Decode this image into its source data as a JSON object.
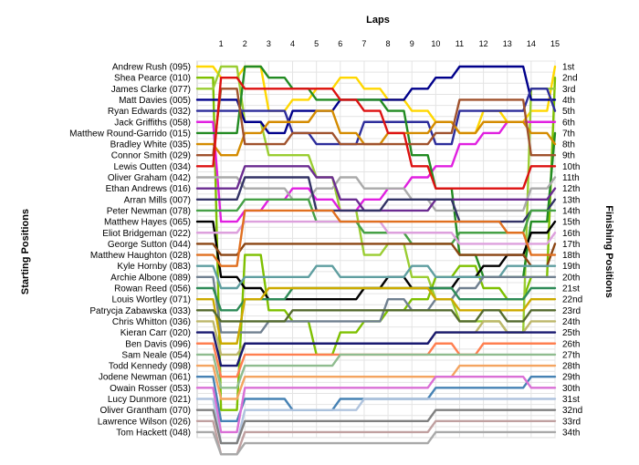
{
  "chart_data": {
    "type": "line",
    "title": "Laps",
    "ylabel_left": "Starting Positions",
    "ylabel_right": "Finishing Positions",
    "laps": [
      "1",
      "2",
      "3",
      "4",
      "5",
      "6",
      "7",
      "8",
      "9",
      "10",
      "11",
      "12",
      "13",
      "14",
      "15"
    ],
    "drivers": [
      "Andrew Rush (095)",
      "Shea Pearce (010)",
      "James Clarke (077)",
      "Matt Davies (005)",
      "Ryan Edwards (032)",
      "Jack Griffiths (058)",
      "Matthew Round-Garrido (015)",
      "Bradley White (035)",
      "Connor Smith (029)",
      "Lewis Outten (034)",
      "Oliver Graham (042)",
      "Ethan Andrews (016)",
      "Arran Mills (007)",
      "Peter Newman (078)",
      "Matthew Hayes (065)",
      "Eliot Bridgeman (022)",
      "George Sutton (044)",
      "Matthew Haughton (028)",
      "Kyle Hornby (083)",
      "Archie Albone (089)",
      "Rowan Reed (056)",
      "Louis Wortley (071)",
      "Patrycja Zabawska (033)",
      "Chris Whitton (036)",
      "Kieran Carr (020)",
      "Ben Davis (096)",
      "Sam Neale (054)",
      "Todd Kennedy (098)",
      "Jodene Newman (061)",
      "Owain Rosser (053)",
      "Lucy Dunmore (021)",
      "Oliver Grantham (070)",
      "Lawrence Wilson (026)",
      "Tom Hackett (048)"
    ],
    "finishing_positions": [
      "1st",
      "2nd",
      "3rd",
      "4th",
      "5th",
      "6th",
      "7th",
      "8th",
      "9th",
      "10th",
      "11th",
      "12th",
      "13th",
      "14th",
      "15th",
      "16th",
      "17th",
      "18th",
      "19th",
      "20th",
      "21st",
      "22nd",
      "23rd",
      "24th",
      "25th",
      "26th",
      "27th",
      "28th",
      "29th",
      "30th",
      "31st",
      "32nd",
      "33rd",
      "34th"
    ],
    "series": [
      {
        "color": "#ffd700",
        "values": [
          2,
          1,
          5,
          4,
          3,
          2,
          3,
          4,
          5,
          6,
          7,
          5,
          6,
          5,
          1
        ]
      },
      {
        "color": "#7ec000",
        "values": [
          32,
          18,
          23,
          24,
          27,
          25,
          24,
          23,
          22,
          20,
          19,
          21,
          22,
          20,
          2
        ]
      },
      {
        "color": "#9acd32",
        "values": [
          1,
          6,
          9,
          9,
          11,
          14,
          18,
          17,
          20,
          22,
          24,
          24,
          25,
          3,
          3
        ]
      },
      {
        "color": "#00008b",
        "values": [
          4,
          6,
          7,
          5,
          5,
          4,
          4,
          4,
          3,
          2,
          1,
          1,
          1,
          4,
          4
        ]
      },
      {
        "color": "#2d2d9b",
        "values": [
          5,
          5,
          5,
          7,
          8,
          8,
          6,
          6,
          6,
          8,
          5,
          5,
          5,
          3,
          5
        ]
      },
      {
        "color": "#e020e0",
        "values": [
          15,
          14,
          13,
          12,
          13,
          14,
          13,
          12,
          11,
          10,
          8,
          7,
          6,
          6,
          6
        ]
      },
      {
        "color": "#228b22",
        "values": [
          7,
          1,
          2,
          3,
          4,
          4,
          4,
          5,
          9,
          12,
          18,
          20,
          20,
          15,
          7
        ]
      },
      {
        "color": "#d48b00",
        "values": [
          9,
          7,
          6,
          6,
          5,
          7,
          8,
          7,
          7,
          6,
          7,
          6,
          6,
          7,
          8
        ]
      },
      {
        "color": "#a0522d",
        "values": [
          3,
          8,
          8,
          7,
          7,
          8,
          8,
          8,
          8,
          7,
          4,
          4,
          4,
          9,
          9
        ]
      },
      {
        "color": "#dd1111",
        "values": [
          2,
          3,
          3,
          3,
          3,
          4,
          5,
          7,
          10,
          12,
          12,
          12,
          12,
          10,
          10
        ]
      },
      {
        "color": "#aaaaaa",
        "values": [
          11,
          12,
          12,
          13,
          12,
          11,
          12,
          12,
          13,
          14,
          14,
          14,
          14,
          12,
          11
        ]
      },
      {
        "color": "#6b2c91",
        "values": [
          12,
          10,
          10,
          10,
          11,
          13,
          14,
          14,
          14,
          13,
          13,
          13,
          13,
          13,
          12
        ]
      },
      {
        "color": "#333366",
        "values": [
          13,
          11,
          11,
          11,
          14,
          14,
          14,
          13,
          13,
          13,
          15,
          15,
          15,
          14,
          13
        ]
      },
      {
        "color": "#46a046",
        "values": [
          14,
          13,
          13,
          13,
          15,
          15,
          16,
          16,
          17,
          17,
          16,
          16,
          16,
          14,
          14
        ]
      },
      {
        "color": "#000000",
        "values": [
          20,
          21,
          22,
          22,
          22,
          22,
          21,
          20,
          21,
          21,
          20,
          19,
          18,
          16,
          15
        ]
      },
      {
        "color": "#dda0dd",
        "values": [
          16,
          15,
          15,
          15,
          15,
          15,
          15,
          16,
          16,
          16,
          17,
          17,
          17,
          17,
          16
        ]
      },
      {
        "color": "#8b4513",
        "values": [
          18,
          17,
          17,
          17,
          17,
          17,
          17,
          17,
          17,
          17,
          18,
          18,
          18,
          19,
          17
        ]
      },
      {
        "color": "#e07020",
        "values": [
          19,
          14,
          14,
          14,
          14,
          15,
          15,
          15,
          15,
          15,
          15,
          15,
          16,
          18,
          18
        ]
      },
      {
        "color": "#5f9ea0",
        "values": [
          21,
          20,
          20,
          20,
          19,
          20,
          20,
          20,
          19,
          20,
          20,
          20,
          19,
          19,
          19
        ]
      },
      {
        "color": "#708090",
        "values": [
          25,
          25,
          24,
          24,
          24,
          24,
          24,
          22,
          23,
          22,
          21,
          20,
          20,
          20,
          20
        ]
      },
      {
        "color": "#2e8b57",
        "values": [
          23,
          22,
          22,
          21,
          21,
          21,
          21,
          21,
          21,
          21,
          22,
          22,
          22,
          21,
          21
        ]
      },
      {
        "color": "#ccaa00",
        "values": [
          26,
          22,
          21,
          21,
          21,
          21,
          21,
          21,
          21,
          22,
          23,
          23,
          23,
          22,
          22
        ]
      },
      {
        "color": "#556b2f",
        "values": [
          24,
          24,
          24,
          23,
          23,
          23,
          23,
          23,
          23,
          23,
          24,
          23,
          24,
          23,
          23
        ]
      },
      {
        "color": "#bdb76b",
        "values": [
          27,
          26,
          26,
          26,
          26,
          26,
          26,
          26,
          26,
          25,
          25,
          24,
          25,
          24,
          24
        ]
      },
      {
        "color": "#191970",
        "values": [
          28,
          26,
          26,
          26,
          26,
          26,
          26,
          26,
          26,
          25,
          25,
          25,
          25,
          25,
          25
        ]
      },
      {
        "color": "#ff7f50",
        "values": [
          29,
          27,
          27,
          27,
          27,
          27,
          27,
          27,
          27,
          26,
          27,
          26,
          26,
          26,
          26
        ]
      },
      {
        "color": "#8fbc8f",
        "values": [
          30,
          28,
          28,
          28,
          28,
          27,
          27,
          27,
          27,
          27,
          27,
          27,
          27,
          27,
          27
        ]
      },
      {
        "color": "#f4a460",
        "values": [
          31,
          29,
          29,
          29,
          29,
          29,
          29,
          29,
          29,
          29,
          28,
          28,
          28,
          28,
          28
        ]
      },
      {
        "color": "#4682b4",
        "values": [
          33,
          31,
          31,
          32,
          32,
          31,
          31,
          31,
          31,
          30,
          30,
          30,
          30,
          29,
          29
        ]
      },
      {
        "color": "#da70d6",
        "values": [
          34,
          30,
          30,
          30,
          30,
          30,
          30,
          30,
          30,
          29,
          29,
          29,
          29,
          30,
          30
        ]
      },
      {
        "color": "#b0c4de",
        "values": [
          35,
          32,
          32,
          32,
          32,
          32,
          31,
          31,
          31,
          31,
          31,
          31,
          31,
          31,
          31
        ]
      },
      {
        "color": "#808080",
        "values": [
          35,
          33,
          33,
          33,
          33,
          33,
          33,
          33,
          33,
          32,
          32,
          32,
          32,
          32,
          32
        ]
      },
      {
        "color": "#c0a0a0",
        "values": [
          36,
          34,
          34,
          34,
          34,
          34,
          34,
          34,
          34,
          33,
          33,
          33,
          33,
          33,
          33
        ]
      },
      {
        "color": "#a9a9a9",
        "values": [
          36,
          35,
          35,
          35,
          35,
          35,
          35,
          35,
          35,
          34,
          34,
          34,
          34,
          34,
          34
        ]
      }
    ]
  }
}
